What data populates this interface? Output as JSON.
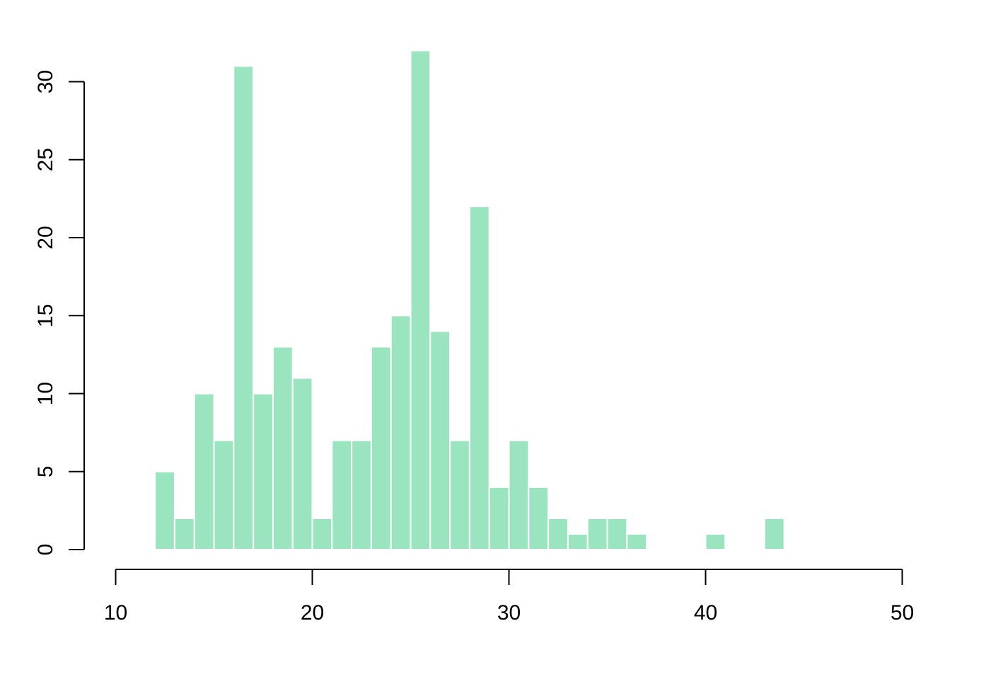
{
  "chart_data": {
    "type": "bar",
    "title": "",
    "xlabel": "",
    "ylabel": "",
    "bar_color": "#9ae5c0",
    "bin_width": 1,
    "bins": [
      {
        "x0": 12,
        "x1": 13,
        "count": 5
      },
      {
        "x0": 13,
        "x1": 14,
        "count": 2
      },
      {
        "x0": 14,
        "x1": 15,
        "count": 10
      },
      {
        "x0": 15,
        "x1": 16,
        "count": 7
      },
      {
        "x0": 16,
        "x1": 17,
        "count": 31
      },
      {
        "x0": 17,
        "x1": 18,
        "count": 10
      },
      {
        "x0": 18,
        "x1": 19,
        "count": 13
      },
      {
        "x0": 19,
        "x1": 20,
        "count": 11
      },
      {
        "x0": 20,
        "x1": 21,
        "count": 2
      },
      {
        "x0": 21,
        "x1": 22,
        "count": 7
      },
      {
        "x0": 22,
        "x1": 23,
        "count": 7
      },
      {
        "x0": 23,
        "x1": 24,
        "count": 13
      },
      {
        "x0": 24,
        "x1": 25,
        "count": 15
      },
      {
        "x0": 25,
        "x1": 26,
        "count": 32
      },
      {
        "x0": 26,
        "x1": 27,
        "count": 14
      },
      {
        "x0": 27,
        "x1": 28,
        "count": 7
      },
      {
        "x0": 28,
        "x1": 29,
        "count": 22
      },
      {
        "x0": 29,
        "x1": 30,
        "count": 4
      },
      {
        "x0": 30,
        "x1": 31,
        "count": 7
      },
      {
        "x0": 31,
        "x1": 32,
        "count": 4
      },
      {
        "x0": 32,
        "x1": 33,
        "count": 2
      },
      {
        "x0": 33,
        "x1": 34,
        "count": 1
      },
      {
        "x0": 34,
        "x1": 35,
        "count": 2
      },
      {
        "x0": 35,
        "x1": 36,
        "count": 2
      },
      {
        "x0": 36,
        "x1": 37,
        "count": 1
      },
      {
        "x0": 40,
        "x1": 41,
        "count": 1
      },
      {
        "x0": 43,
        "x1": 44,
        "count": 2
      }
    ],
    "xlim": [
      10,
      50
    ],
    "ylim": [
      0,
      30
    ],
    "x_ticks": [
      10,
      20,
      30,
      40,
      50
    ],
    "x_tick_labels": [
      "10",
      "20",
      "30",
      "40",
      "50"
    ],
    "y_ticks": [
      0,
      5,
      10,
      15,
      20,
      25,
      30
    ],
    "y_tick_labels": [
      "0",
      "5",
      "10",
      "15",
      "20",
      "25",
      "30"
    ],
    "grid": false,
    "legend": "none"
  }
}
